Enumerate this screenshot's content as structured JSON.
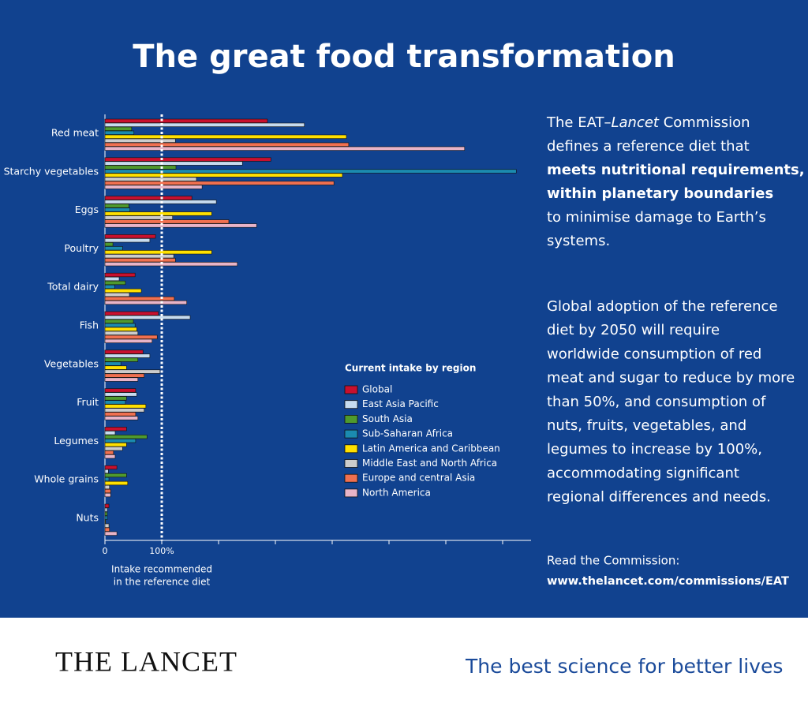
{
  "chart_data": {
    "type": "hbar",
    "title": "The great food transformation",
    "categories": [
      "Red meat",
      "Starchy vegetables",
      "Eggs",
      "Poultry",
      "Total dairy",
      "Fish",
      "Vegetables",
      "Fruit",
      "Legumes",
      "Whole grains",
      "Nuts"
    ],
    "series": [
      {
        "name": "Global",
        "color": "#c8102e",
        "values": [
          286,
          292,
          153,
          89,
          53,
          94,
          67,
          54,
          38,
          21,
          7
        ]
      },
      {
        "name": "East Asia Pacific",
        "color": "#c6dbef",
        "values": [
          351,
          242,
          196,
          79,
          25,
          150,
          79,
          56,
          18,
          6,
          4
        ]
      },
      {
        "name": "South Asia",
        "color": "#4f9a2e",
        "values": [
          47,
          125,
          42,
          14,
          36,
          50,
          58,
          38,
          74,
          38,
          4
        ]
      },
      {
        "name": "Sub-Saharan Africa",
        "color": "#1b8bb0",
        "values": [
          51,
          724,
          44,
          31,
          17,
          53,
          28,
          36,
          54,
          7,
          4
        ]
      },
      {
        "name": "Latin America and Caribbean",
        "color": "#ffe000",
        "values": [
          425,
          418,
          188,
          188,
          64,
          56,
          38,
          72,
          38,
          40,
          1
        ]
      },
      {
        "name": "Middle East and North Africa",
        "color": "#cccccc",
        "values": [
          124,
          161,
          119,
          121,
          43,
          58,
          97,
          69,
          31,
          8,
          7
        ]
      },
      {
        "name": "Europe and central  Asia",
        "color": "#f07050",
        "values": [
          429,
          403,
          218,
          124,
          122,
          92,
          69,
          54,
          15,
          10,
          8
        ]
      },
      {
        "name": "North America",
        "color": "#e8b4c8",
        "values": [
          633,
          171,
          267,
          233,
          144,
          83,
          58,
          58,
          18,
          10,
          21
        ]
      }
    ],
    "xlim": [
      0,
      750
    ],
    "xticks": [
      0,
      {
        "value": 100,
        "label": "100%"
      },
      {
        "value": 200,
        "label": null
      },
      {
        "value": 300,
        "label": null
      },
      {
        "value": 400,
        "label": null
      },
      {
        "value": 500,
        "label": null
      },
      {
        "value": 600,
        "label": null
      },
      {
        "value": 700,
        "label": null
      }
    ],
    "reference_line": {
      "value": 100,
      "label": [
        "Intake recommended",
        "in the reference diet"
      ]
    },
    "legend_title": "Current intake by region"
  },
  "panel": {
    "paragraph1": [
      [
        "The EAT–",
        "Lancet",
        " Commission"
      ],
      [
        "defines a reference diet that"
      ],
      [
        "meets nutritional requirements,"
      ],
      [
        "within planetary boundaries"
      ],
      [
        "to minimise damage to Earth’s"
      ],
      [
        "systems."
      ]
    ],
    "paragraph2": [
      "Global adoption of the reference",
      "diet by 2050 will require",
      "worldwide consumption of red",
      "meat and sugar to reduce by more",
      "than 50%, and consumption of",
      "nuts, fruits, vegetables, and",
      "legumes to increase by 100%,",
      "accommodating significant",
      "regional differences and needs."
    ],
    "read": "Read the Commission:",
    "link": "www.thelancet.com/commissions/EAT"
  },
  "footer": {
    "brand": "THE LANCET",
    "tagline": "The best science for better lives"
  }
}
